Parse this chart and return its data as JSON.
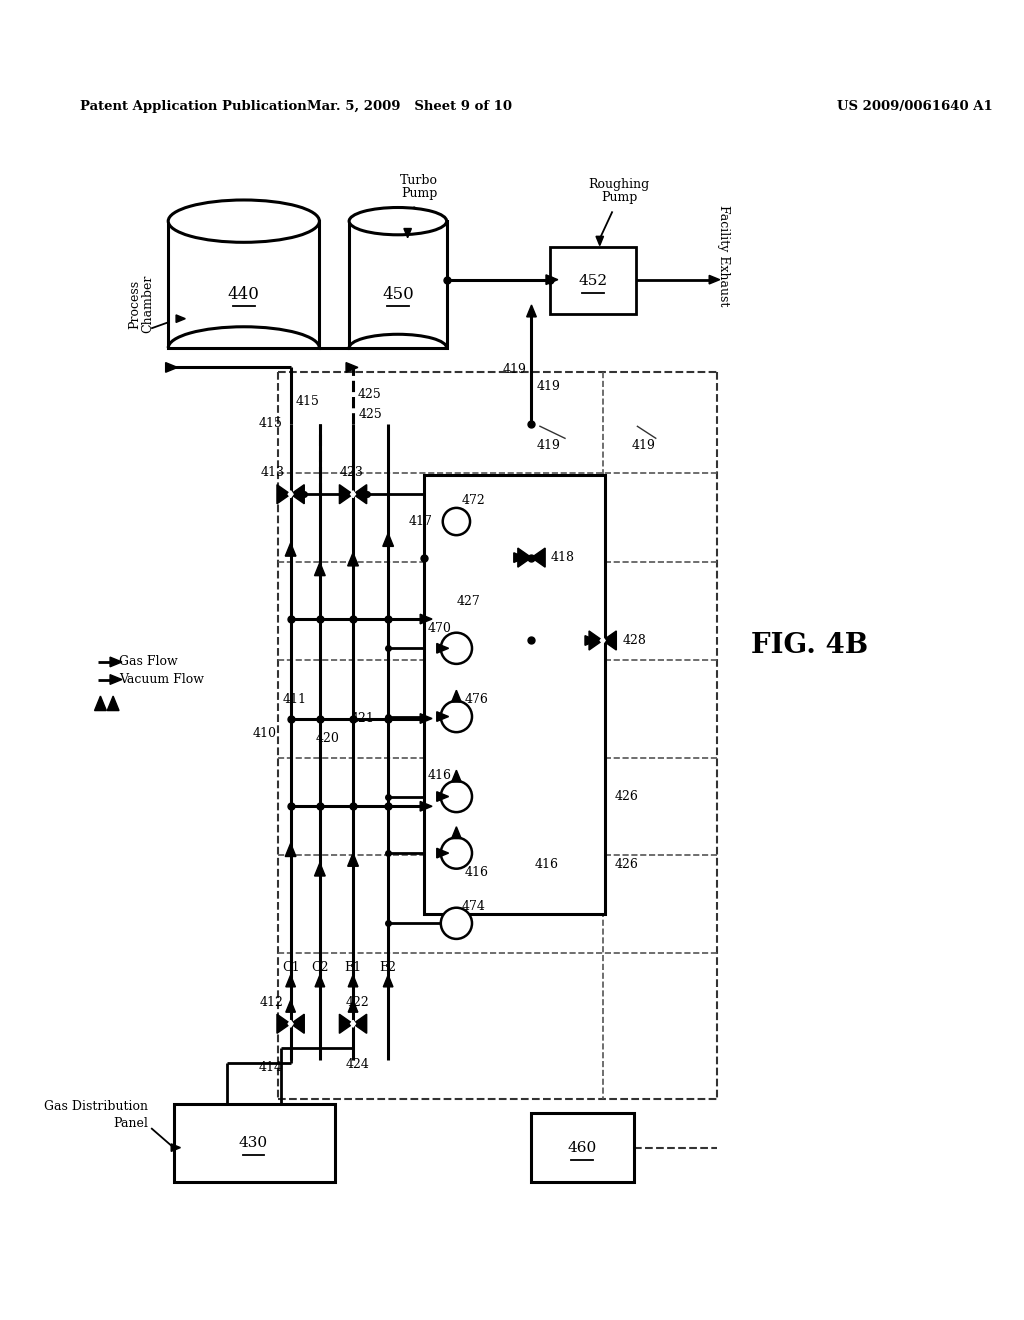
{
  "title_left": "Patent Application Publication",
  "title_center": "Mar. 5, 2009   Sheet 9 of 10",
  "title_right": "US 2009/0061640 A1",
  "fig_label": "FIG. 4B",
  "background": "#ffffff"
}
